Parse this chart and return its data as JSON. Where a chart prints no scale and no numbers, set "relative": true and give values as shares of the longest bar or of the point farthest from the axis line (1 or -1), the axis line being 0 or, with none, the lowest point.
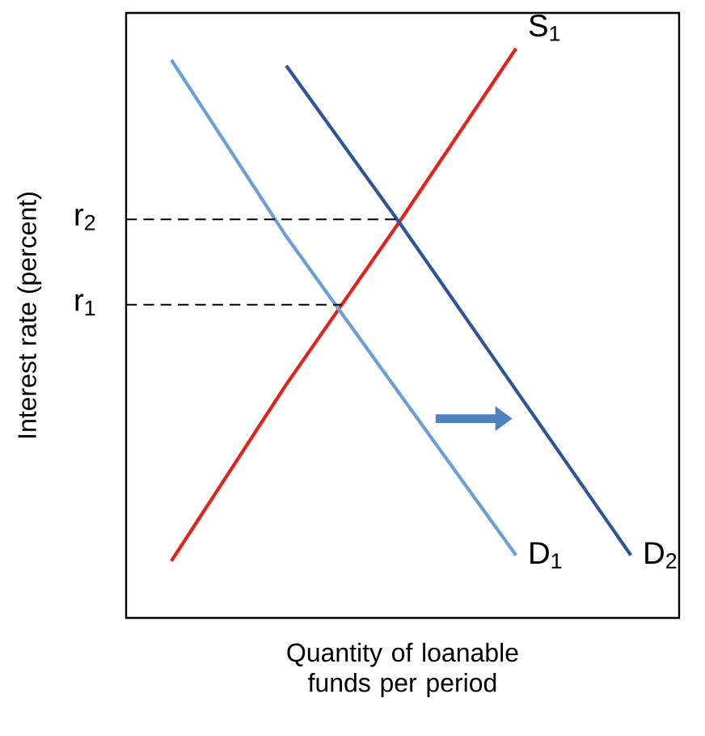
{
  "chart_data": {
    "type": "line",
    "relative": true,
    "xlabel": "Quantity of loanable funds per period",
    "ylabel": "Interest rate (percent)",
    "categories": [
      null,
      null,
      null,
      null,
      null
    ],
    "series": [
      {
        "name": "S$_{1}$",
        "color": "#e3231b",
        "values": [
          0.1,
          0.41,
          0.7,
          1.0,
          null
        ]
      },
      {
        "name": "D$_{1}$",
        "color": "#6b9fd6",
        "values": [
          0.98,
          0.67,
          0.39,
          0.11,
          null
        ]
      },
      {
        "name": "D$_{2}$",
        "color": "#2f5597",
        "values": [
          null,
          0.97,
          0.69,
          0.4,
          0.11
        ]
      }
    ],
    "ref_lines": [
      {
        "axis": "y",
        "value": 0.7,
        "label": "r$_{2}$",
        "line_style": "dashed",
        "color": "#000000"
      },
      {
        "axis": "y",
        "value": 0.55,
        "label": "r$_{1}$",
        "line_style": "dashed",
        "color": "#000000"
      }
    ],
    "tick_labels": false,
    "legend": false,
    "marker": "none",
    "line_style": "solid"
  }
}
